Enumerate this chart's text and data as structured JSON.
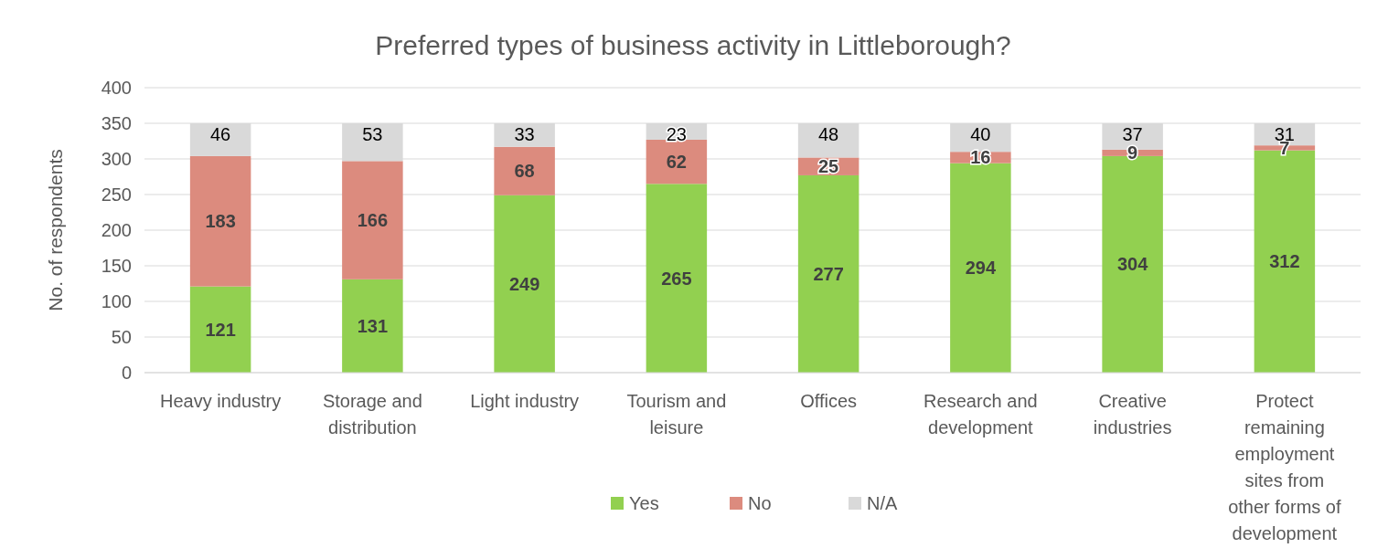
{
  "chart_data": {
    "type": "bar",
    "stacked": true,
    "title": "Preferred types of business activity in Littleborough?",
    "ylabel": "No. of respondents",
    "categories": [
      "Heavy industry",
      "Storage and distribution",
      "Light industry",
      "Tourism and leisure",
      "Offices",
      "Research and development",
      "Creative industries",
      "Protect remaining employment sites from other forms of development"
    ],
    "series": [
      {
        "name": "Yes",
        "color": "#92d050",
        "values": [
          121,
          131,
          249,
          265,
          277,
          294,
          304,
          312
        ]
      },
      {
        "name": "No",
        "color": "#dc8b7e",
        "values": [
          183,
          166,
          68,
          62,
          25,
          16,
          9,
          7
        ]
      },
      {
        "name": "N/A",
        "color": "#d9d9d9",
        "values": [
          46,
          53,
          33,
          23,
          48,
          40,
          37,
          31
        ]
      }
    ],
    "ylim": [
      0,
      400
    ],
    "yticks": [
      0,
      50,
      100,
      150,
      200,
      250,
      300,
      350,
      400
    ],
    "grid": "y",
    "legend": "bottom",
    "data_labels": true
  }
}
